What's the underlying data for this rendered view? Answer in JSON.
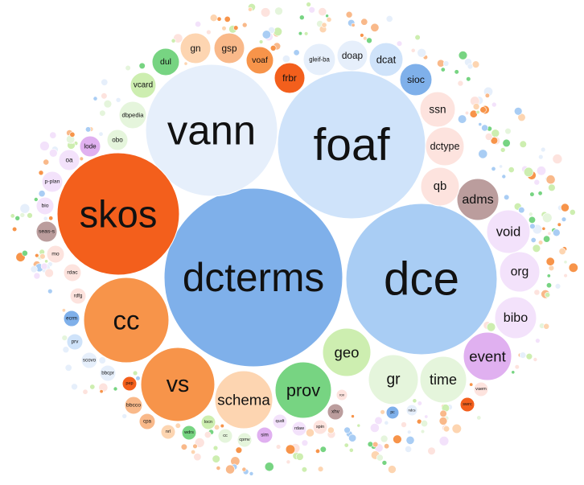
{
  "chart_data": {
    "type": "bubble",
    "title": "",
    "colors": {
      "blue_dark": "#7fb0ea",
      "blue_mid": "#a9cdf4",
      "blue_light": "#cfe3fa",
      "blue_pale": "#e6effb",
      "orange_dark": "#f35f1c",
      "orange_mid": "#f7944a",
      "orange_light": "#f9b98a",
      "peach": "#fdd5b1",
      "salmon": "#fde3de",
      "green_mid": "#77d482",
      "green_light": "#cdeeb0",
      "green_pale": "#e5f5dc",
      "purple": "#e0b0f0",
      "lavender": "#f3e2fb",
      "mauve": "#bb9d9d",
      "grey": "#e6e6e6"
    },
    "bubbles": [
      {
        "label": "dcterms",
        "value": 100,
        "color": "blue_dark"
      },
      {
        "label": "foaf",
        "value": 80,
        "color": "blue_light"
      },
      {
        "label": "vann",
        "value": 72,
        "color": "blue_pale"
      },
      {
        "label": "dce",
        "value": 70,
        "color": "blue_mid"
      },
      {
        "label": "skos",
        "value": 54,
        "color": "orange_dark"
      },
      {
        "label": "cc",
        "value": 33,
        "color": "orange_mid"
      },
      {
        "label": "vs",
        "value": 25,
        "color": "orange_mid"
      },
      {
        "label": "schema",
        "value": 19,
        "color": "peach"
      },
      {
        "label": "prov",
        "value": 17,
        "color": "green_mid"
      },
      {
        "label": "gr",
        "value": 13,
        "color": "green_pale"
      },
      {
        "label": "time",
        "value": 12,
        "color": "green_pale"
      },
      {
        "label": "geo",
        "value": 10,
        "color": "green_light"
      },
      {
        "label": "event",
        "value": 9,
        "color": "purple"
      },
      {
        "label": "bibo",
        "value": 8,
        "color": "lavender"
      },
      {
        "label": "org",
        "value": 7.5,
        "color": "lavender"
      },
      {
        "label": "void",
        "value": 7.5,
        "color": "lavender"
      },
      {
        "label": "adms",
        "value": 6,
        "color": "mauve"
      },
      {
        "label": "qb",
        "value": 6,
        "color": "salmon"
      },
      {
        "label": "dctype",
        "value": 5,
        "color": "salmon"
      },
      {
        "label": "ssn",
        "value": 5,
        "color": "salmon"
      },
      {
        "label": "sioc",
        "value": 4,
        "color": "blue_dark"
      },
      {
        "label": "dcat",
        "value": 4,
        "color": "blue_light"
      },
      {
        "label": "doap",
        "value": 3.6,
        "color": "blue_pale"
      },
      {
        "label": "gleif-ba",
        "value": 4,
        "color": "blue_pale"
      },
      {
        "label": "frbr",
        "value": 3.2,
        "color": "orange_dark"
      },
      {
        "label": "voaf",
        "value": 3.2,
        "color": "orange_mid"
      },
      {
        "label": "gsp",
        "value": 3.6,
        "color": "orange_light"
      },
      {
        "label": "gn",
        "value": 3.6,
        "color": "peach"
      },
      {
        "label": "dul",
        "value": 2.8,
        "color": "green_mid"
      },
      {
        "label": "vcard",
        "value": 2.8,
        "color": "green_light"
      },
      {
        "label": "dbpedia",
        "value": 2.8,
        "color": "green_pale"
      },
      {
        "label": "obo",
        "value": 2,
        "color": "green_pale"
      },
      {
        "label": "lode",
        "value": 2,
        "color": "purple"
      },
      {
        "label": "oa",
        "value": 2,
        "color": "lavender"
      },
      {
        "label": "p-plan",
        "value": 2,
        "color": "lavender"
      },
      {
        "label": "bio",
        "value": 1.6,
        "color": "lavender"
      },
      {
        "label": "seas-s",
        "value": 1.6,
        "color": "mauve"
      },
      {
        "label": "mo",
        "value": 1.6,
        "color": "salmon"
      },
      {
        "label": "rdac",
        "value": 1.6,
        "color": "salmon"
      },
      {
        "label": "rdfg",
        "value": 1.4,
        "color": "salmon"
      },
      {
        "label": "ecrm",
        "value": 1.4,
        "color": "blue_dark"
      },
      {
        "label": "prv",
        "value": 1.4,
        "color": "blue_light"
      },
      {
        "label": "scovo",
        "value": 1.4,
        "color": "blue_pale"
      },
      {
        "label": "bbcpr",
        "value": 1.2,
        "color": "blue_pale"
      },
      {
        "label": "pep",
        "value": 1.2,
        "color": "orange_dark"
      },
      {
        "label": "bbcco",
        "value": 1.2,
        "color": "orange_light"
      },
      {
        "label": "cpa",
        "value": 1.0,
        "color": "orange_light"
      },
      {
        "label": "nrl",
        "value": 1.0,
        "color": "peach"
      },
      {
        "label": "wdrs",
        "value": 1.0,
        "color": "green_mid"
      },
      {
        "label": "locn",
        "value": 1.0,
        "color": "green_light"
      },
      {
        "label": "cc",
        "value": 1.0,
        "color": "green_pale"
      },
      {
        "label": "cpmv",
        "value": 1.0,
        "color": "green_pale"
      },
      {
        "label": "sim",
        "value": 1.0,
        "color": "purple"
      },
      {
        "label": "qudt",
        "value": 1.0,
        "color": "lavender"
      },
      {
        "label": "rdaw",
        "value": 1.0,
        "color": "lavender"
      },
      {
        "label": "spin",
        "value": 1.0,
        "color": "salmon"
      },
      {
        "label": "xhv",
        "value": 1.0,
        "color": "mauve"
      },
      {
        "label": "rov",
        "value": 0.8,
        "color": "salmon"
      },
      {
        "label": "vaem",
        "value": 1.0,
        "color": "salmon"
      },
      {
        "label": "swrc",
        "value": 1.0,
        "color": "orange_dark"
      },
      {
        "label": "pc",
        "value": 0.8,
        "color": "blue_dark"
      },
      {
        "label": "ndcs",
        "value": 0.7,
        "color": "blue_pale"
      }
    ]
  }
}
